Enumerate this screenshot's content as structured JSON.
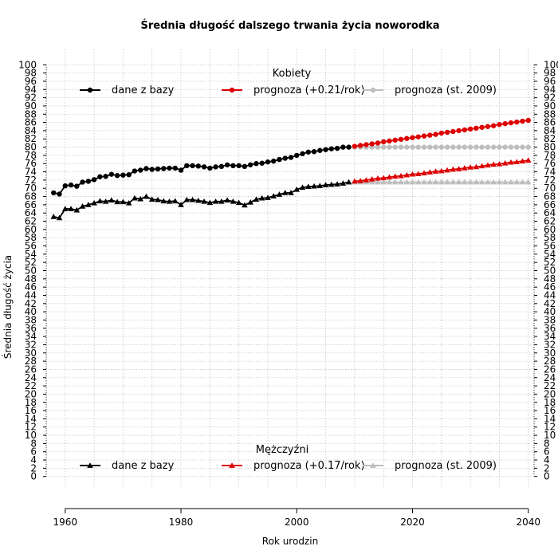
{
  "chart_data": {
    "type": "line",
    "title": "Średnia długość dalszego trwania życia noworodka",
    "xlabel": "Rok urodzin",
    "ylabel": "Średnia długość życia",
    "xlim": [
      1957,
      2041
    ],
    "ylim": [
      -1.8,
      101.8
    ],
    "x_ticks": [
      1960,
      1980,
      2000,
      2020,
      2040
    ],
    "y_ticks": [
      0,
      2,
      4,
      6,
      8,
      10,
      12,
      14,
      16,
      18,
      20,
      22,
      24,
      26,
      28,
      30,
      32,
      34,
      36,
      38,
      40,
      42,
      44,
      46,
      48,
      50,
      52,
      54,
      56,
      58,
      60,
      62,
      64,
      66,
      68,
      70,
      72,
      74,
      76,
      78,
      80,
      82,
      84,
      86,
      88,
      90,
      92,
      94,
      96,
      98,
      100
    ],
    "grid": true,
    "legends": [
      {
        "title": "Kobiety",
        "placement": "top",
        "entries": [
          {
            "label": "dane z bazy",
            "color": "#000000",
            "marker": "circle"
          },
          {
            "label": "prognoza (+0.21/rok)",
            "color": "#dd0000",
            "marker": "circle"
          },
          {
            "label": "prognoza (st. 2009)",
            "color": "#bebebe",
            "marker": "circle"
          }
        ]
      },
      {
        "title": "Mężczyźni",
        "placement": "bottom",
        "entries": [
          {
            "label": "dane z bazy",
            "color": "#000000",
            "marker": "triangle"
          },
          {
            "label": "prognoza (+0.17/rok)",
            "color": "#dd0000",
            "marker": "triangle"
          },
          {
            "label": "prognoza (st. 2009)",
            "color": "#bebebe",
            "marker": "triangle"
          }
        ]
      }
    ],
    "series": [
      {
        "group": "Kobiety",
        "label": "dane z bazy",
        "color": "#000000",
        "marker": "circle",
        "x": [
          1958,
          1959,
          1960,
          1961,
          1962,
          1963,
          1964,
          1965,
          1966,
          1967,
          1968,
          1969,
          1970,
          1971,
          1972,
          1973,
          1974,
          1975,
          1976,
          1977,
          1978,
          1979,
          1980,
          1981,
          1982,
          1983,
          1984,
          1985,
          1986,
          1987,
          1988,
          1989,
          1990,
          1991,
          1992,
          1993,
          1994,
          1995,
          1996,
          1997,
          1998,
          1999,
          2000,
          2001,
          2002,
          2003,
          2004,
          2005,
          2006,
          2007,
          2008,
          2009
        ],
        "y": [
          68.9,
          68.6,
          70.6,
          70.8,
          70.5,
          71.5,
          71.7,
          72.1,
          72.8,
          72.9,
          73.4,
          73.1,
          73.2,
          73.3,
          74.2,
          74.4,
          74.8,
          74.6,
          74.7,
          74.8,
          74.9,
          74.9,
          74.4,
          75.5,
          75.5,
          75.4,
          75.2,
          74.9,
          75.2,
          75.3,
          75.7,
          75.5,
          75.5,
          75.3,
          75.7,
          76.0,
          76.1,
          76.4,
          76.6,
          77.0,
          77.3,
          77.5,
          78.0,
          78.4,
          78.8,
          78.9,
          79.2,
          79.4,
          79.6,
          79.7,
          80.0,
          80.0
        ]
      },
      {
        "group": "Kobiety",
        "label": "prognoza (st. 2009)",
        "color": "#bebebe",
        "marker": "circle",
        "x": [
          2010,
          2011,
          2012,
          2013,
          2014,
          2015,
          2016,
          2017,
          2018,
          2019,
          2020,
          2021,
          2022,
          2023,
          2024,
          2025,
          2026,
          2027,
          2028,
          2029,
          2030,
          2031,
          2032,
          2033,
          2034,
          2035,
          2036,
          2037,
          2038,
          2039,
          2040
        ],
        "y": [
          80.0,
          80.0,
          80.0,
          80.0,
          80.0,
          80.0,
          80.0,
          80.0,
          80.0,
          80.0,
          80.0,
          80.0,
          80.0,
          80.0,
          80.0,
          80.0,
          80.0,
          80.0,
          80.0,
          80.0,
          80.0,
          80.0,
          80.0,
          80.0,
          80.0,
          80.0,
          80.0,
          80.0,
          80.0,
          80.0,
          80.0
        ]
      },
      {
        "group": "Kobiety",
        "label": "prognoza (+0.21/rok)",
        "color": "#dd0000",
        "marker": "circle",
        "x": [
          2010,
          2011,
          2012,
          2013,
          2014,
          2015,
          2016,
          2017,
          2018,
          2019,
          2020,
          2021,
          2022,
          2023,
          2024,
          2025,
          2026,
          2027,
          2028,
          2029,
          2030,
          2031,
          2032,
          2033,
          2034,
          2035,
          2036,
          2037,
          2038,
          2039,
          2040
        ],
        "y": [
          80.2,
          80.4,
          80.6,
          80.8,
          81.0,
          81.3,
          81.5,
          81.7,
          81.9,
          82.1,
          82.3,
          82.5,
          82.7,
          82.9,
          83.1,
          83.4,
          83.6,
          83.8,
          84.0,
          84.2,
          84.4,
          84.6,
          84.8,
          85.0,
          85.2,
          85.5,
          85.7,
          85.9,
          86.1,
          86.3,
          86.5
        ]
      },
      {
        "group": "Mężczyźni",
        "label": "dane z bazy",
        "color": "#000000",
        "marker": "triangle",
        "x": [
          1958,
          1959,
          1960,
          1961,
          1962,
          1963,
          1964,
          1965,
          1966,
          1967,
          1968,
          1969,
          1970,
          1971,
          1972,
          1973,
          1974,
          1975,
          1976,
          1977,
          1978,
          1979,
          1980,
          1981,
          1982,
          1983,
          1984,
          1985,
          1986,
          1987,
          1988,
          1989,
          1990,
          1991,
          1992,
          1993,
          1994,
          1995,
          1996,
          1997,
          1998,
          1999,
          2000,
          2001,
          2002,
          2003,
          2004,
          2005,
          2006,
          2007,
          2008,
          2009
        ],
        "y": [
          63.1,
          62.8,
          65.0,
          65.0,
          64.7,
          65.6,
          66.0,
          66.4,
          66.9,
          66.8,
          67.1,
          66.7,
          66.7,
          66.4,
          67.6,
          67.4,
          68.0,
          67.3,
          67.2,
          66.9,
          66.8,
          66.9,
          66.0,
          67.2,
          67.2,
          67.0,
          66.8,
          66.5,
          66.8,
          66.8,
          67.1,
          66.8,
          66.5,
          65.9,
          66.6,
          67.3,
          67.6,
          67.7,
          68.1,
          68.5,
          68.9,
          68.9,
          69.7,
          70.2,
          70.4,
          70.5,
          70.6,
          70.8,
          70.9,
          71.0,
          71.2,
          71.5
        ]
      },
      {
        "group": "Mężczyźni",
        "label": "prognoza (st. 2009)",
        "color": "#bebebe",
        "marker": "triangle",
        "x": [
          2010,
          2011,
          2012,
          2013,
          2014,
          2015,
          2016,
          2017,
          2018,
          2019,
          2020,
          2021,
          2022,
          2023,
          2024,
          2025,
          2026,
          2027,
          2028,
          2029,
          2030,
          2031,
          2032,
          2033,
          2034,
          2035,
          2036,
          2037,
          2038,
          2039,
          2040
        ],
        "y": [
          71.5,
          71.5,
          71.5,
          71.5,
          71.5,
          71.5,
          71.5,
          71.5,
          71.5,
          71.5,
          71.5,
          71.5,
          71.5,
          71.5,
          71.5,
          71.5,
          71.5,
          71.5,
          71.5,
          71.5,
          71.5,
          71.5,
          71.5,
          71.5,
          71.5,
          71.5,
          71.5,
          71.5,
          71.5,
          71.5,
          71.5
        ]
      },
      {
        "group": "Mężczyźni",
        "label": "prognoza (+0.17/rok)",
        "color": "#dd0000",
        "marker": "triangle",
        "x": [
          2010,
          2011,
          2012,
          2013,
          2014,
          2015,
          2016,
          2017,
          2018,
          2019,
          2020,
          2021,
          2022,
          2023,
          2024,
          2025,
          2026,
          2027,
          2028,
          2029,
          2030,
          2031,
          2032,
          2033,
          2034,
          2035,
          2036,
          2037,
          2038,
          2039,
          2040
        ],
        "y": [
          71.7,
          71.8,
          72.0,
          72.2,
          72.4,
          72.5,
          72.7,
          72.9,
          73.0,
          73.2,
          73.4,
          73.5,
          73.7,
          73.9,
          74.1,
          74.2,
          74.4,
          74.6,
          74.7,
          74.9,
          75.1,
          75.2,
          75.4,
          75.6,
          75.8,
          75.9,
          76.1,
          76.3,
          76.4,
          76.6,
          76.8
        ]
      }
    ]
  }
}
